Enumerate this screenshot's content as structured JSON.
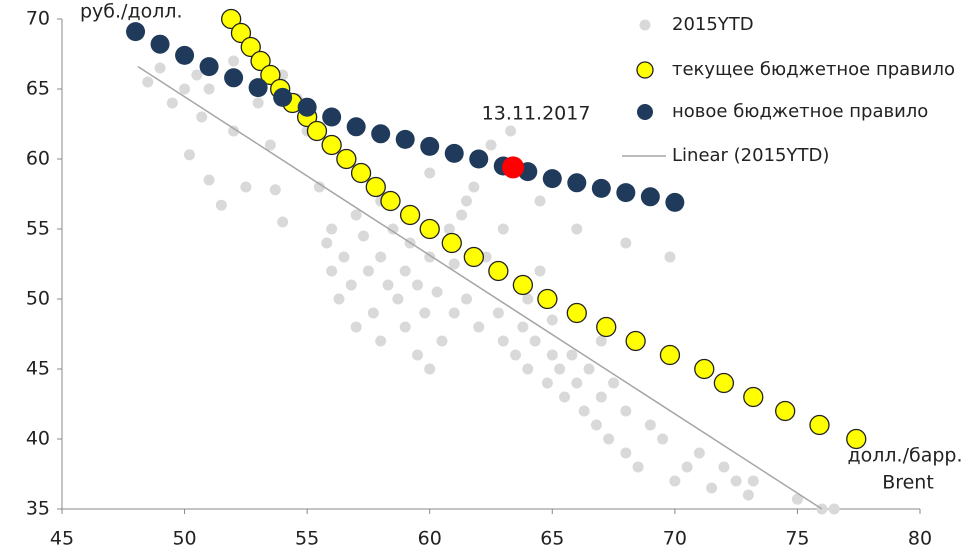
{
  "chart_data": {
    "type": "scatter",
    "y_label": "руб./долл.",
    "x_label": [
      "долл./барр.",
      "Brent"
    ],
    "xlim": [
      45,
      80
    ],
    "xticks": [
      45,
      50,
      55,
      60,
      65,
      70,
      75,
      80
    ],
    "ylim": [
      35,
      70
    ],
    "yticks": [
      35,
      40,
      45,
      50,
      55,
      60,
      65,
      70
    ],
    "series": [
      {
        "name": "2015YTD",
        "color": "#d9d9d9",
        "x": [
          48.5,
          49,
          49.5,
          50,
          50.2,
          50.5,
          51,
          51,
          51.5,
          52,
          52,
          52.5,
          53,
          53.5,
          53.7,
          54,
          54,
          55,
          55.5,
          55.8,
          56,
          56,
          56.3,
          56.5,
          56.8,
          57,
          57,
          57.3,
          57.5,
          57.7,
          58,
          58,
          58,
          58.3,
          58.5,
          58.7,
          59,
          59,
          59.2,
          59.5,
          59.5,
          59.8,
          60,
          60,
          60.3,
          60.5,
          60.8,
          61,
          61,
          61.3,
          61.5,
          61.8,
          62,
          62.3,
          62.5,
          62.8,
          63,
          63,
          63.3,
          63.5,
          63.8,
          64,
          64,
          64.3,
          64.5,
          64.8,
          65,
          65,
          65.3,
          65.5,
          65.8,
          66,
          66,
          66.3,
          66.5,
          66.8,
          67,
          67,
          67.3,
          67.5,
          68,
          68,
          68.5,
          69,
          69.5,
          70,
          70.5,
          71,
          71.5,
          72,
          72.5,
          73,
          73.2,
          75,
          76,
          76.5,
          69.8,
          66,
          64.5,
          68,
          61.5,
          60,
          54.6,
          50.7,
          52.1
        ],
        "values": [
          65.5,
          66.5,
          64,
          65,
          60.3,
          66,
          58.5,
          65,
          56.7,
          67,
          62,
          58,
          64,
          61,
          57.8,
          55.5,
          66,
          62,
          58,
          54,
          52,
          55,
          50,
          53,
          51,
          56,
          48,
          54.5,
          52,
          49,
          57,
          53,
          47,
          51,
          55,
          50,
          52,
          48,
          54,
          51,
          46,
          49,
          53,
          45,
          50.5,
          47,
          55,
          49,
          52.5,
          56,
          50,
          58,
          48,
          53,
          61,
          49,
          47,
          55,
          62,
          46,
          48,
          50,
          45,
          47,
          52,
          44,
          46,
          48.5,
          45,
          43,
          46,
          44,
          49,
          42,
          45,
          41,
          47,
          43,
          40,
          44,
          42,
          39,
          38,
          41,
          40,
          37,
          38,
          39,
          36.5,
          38,
          37,
          36,
          37,
          35.7,
          35,
          35,
          53,
          55,
          57,
          54,
          57,
          59,
          64.3,
          63,
          66
        ]
      },
      {
        "name": "текущее бюджетное правило",
        "color": "#ffff00",
        "x": [
          51.9,
          52.3,
          52.7,
          53.1,
          53.5,
          53.9,
          54.4,
          55.0,
          55.4,
          56.0,
          56.6,
          57.2,
          57.8,
          58.4,
          59.2,
          60.0,
          60.9,
          61.8,
          62.8,
          63.8,
          64.8,
          66.0,
          67.2,
          68.4,
          69.8,
          71.2,
          72.0,
          73.2,
          74.5,
          75.9,
          77.4
        ],
        "values": [
          70,
          69,
          68,
          67,
          66,
          65,
          64,
          63,
          62,
          61,
          60,
          59,
          58,
          57,
          56,
          55,
          54,
          53,
          52,
          51,
          50,
          49,
          48,
          47,
          46,
          45,
          44,
          43,
          42,
          41,
          40
        ]
      },
      {
        "name": "новое бюджетное правило",
        "color": "#1f3a5a",
        "x": [
          48,
          49,
          50,
          51,
          52,
          53,
          54,
          55,
          56,
          57,
          58,
          59,
          60,
          61,
          62,
          63,
          64,
          65,
          66,
          67,
          68,
          69,
          70
        ],
        "values": [
          69.1,
          68.2,
          67.4,
          66.6,
          65.8,
          65.1,
          64.4,
          63.7,
          63.0,
          62.3,
          61.8,
          61.4,
          60.9,
          60.4,
          60.0,
          59.5,
          59.1,
          58.6,
          58.3,
          57.9,
          57.6,
          57.3,
          56.9
        ]
      },
      {
        "name": "Linear (2015YTD)",
        "type": "line",
        "color": "#a6a6a6",
        "x": [
          48.1,
          76.0
        ],
        "values": [
          66.6,
          35
        ]
      }
    ],
    "annotation": {
      "text": "13.11.2017",
      "x": 63.4,
      "y": 59.4,
      "color": "#ff0000"
    }
  }
}
